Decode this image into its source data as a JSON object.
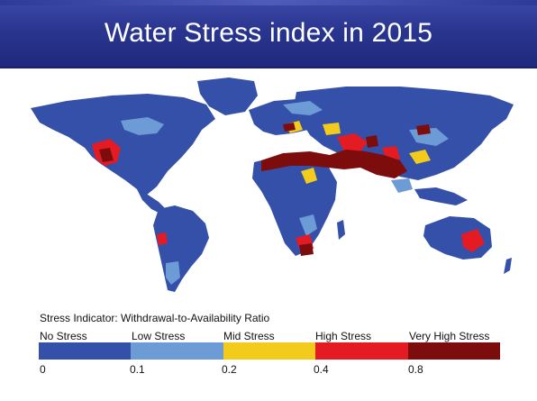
{
  "title": "Water Stress index in 2015",
  "legend": {
    "title": "Stress Indicator: Withdrawal-to-Availability Ratio",
    "classes": [
      {
        "label": "No Stress",
        "color": "#3450a8"
      },
      {
        "label": "Low Stress",
        "color": "#6c9bd6"
      },
      {
        "label": "Mid Stress",
        "color": "#f2cb1c"
      },
      {
        "label": "High Stress",
        "color": "#e51b24"
      },
      {
        "label": "Very High Stress",
        "color": "#7d0d0d"
      }
    ],
    "ticks": [
      "0",
      "0.1",
      "0.2",
      "0.4",
      "0.8"
    ]
  }
}
